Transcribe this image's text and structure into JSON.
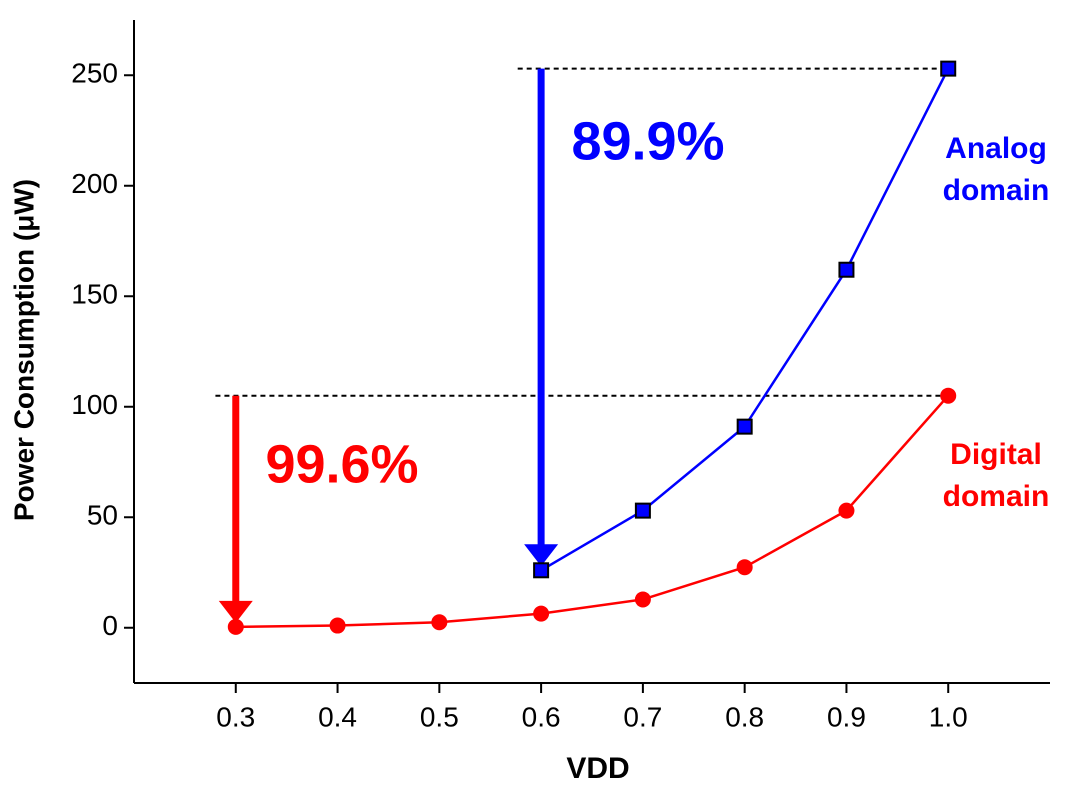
{
  "chart_data": {
    "type": "line",
    "x_label": "VDD",
    "y_label": "Power Consumption (μW)",
    "xlim": [
      0.2,
      1.1
    ],
    "xticks": [
      0.3,
      0.4,
      0.5,
      0.6,
      0.7,
      0.8,
      0.9,
      {
        "value": 1,
        "label": "1.0"
      }
    ],
    "ylim": [
      -25,
      275
    ],
    "yticks": [
      0,
      50,
      100,
      150,
      200,
      250
    ],
    "series": [
      {
        "name": "Analog domain",
        "name_lines": [
          "Analog",
          "domain"
        ],
        "color": "#0000ff",
        "marker": "square",
        "x": [
          0.6,
          0.7,
          0.8,
          0.9,
          1.0
        ],
        "values": [
          26,
          53,
          91,
          162,
          253
        ]
      },
      {
        "name": "Digital domain",
        "name_lines": [
          "Digital",
          "domain"
        ],
        "color": "#ff0000",
        "marker": "circle",
        "x": [
          0.3,
          0.4,
          0.5,
          0.6,
          0.7,
          0.8,
          0.9,
          1.0
        ],
        "values": [
          0.4,
          1,
          2.5,
          6.4,
          12.8,
          27.4,
          53,
          105
        ]
      }
    ],
    "annotations": [
      "89.9%",
      "99.6%"
    ]
  }
}
